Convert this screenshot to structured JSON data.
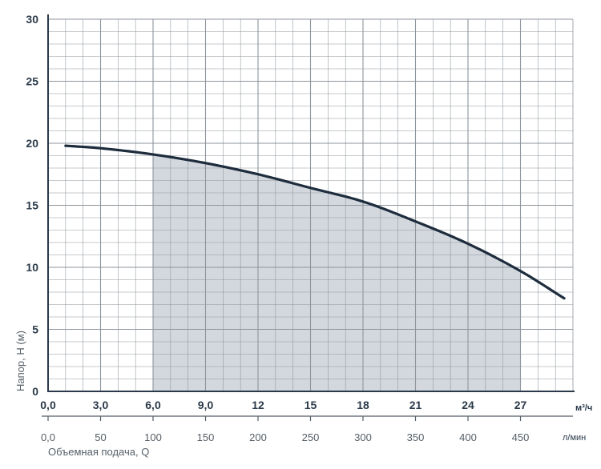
{
  "chart_data": {
    "type": "area",
    "title": "",
    "xlabel": "Объемная подача, Q",
    "ylabel": "Напор, Н (м)",
    "x_unit_primary": "м³/ч",
    "x_unit_secondary": "л/мин",
    "xlim": [
      0,
      30
    ],
    "ylim": [
      0,
      30
    ],
    "x_ticks_primary": [
      "0,0",
      "3,0",
      "6,0",
      "9,0",
      "12",
      "15",
      "18",
      "21",
      "24",
      "27"
    ],
    "x_ticks_primary_values": [
      0,
      3,
      6,
      9,
      12,
      15,
      18,
      21,
      24,
      27
    ],
    "x_ticks_secondary": [
      "0,0",
      "50",
      "100",
      "150",
      "200",
      "250",
      "300",
      "350",
      "400",
      "450"
    ],
    "x_ticks_secondary_values": [
      0,
      50,
      100,
      150,
      200,
      250,
      300,
      350,
      400,
      450
    ],
    "y_ticks": [
      "0",
      "5",
      "10",
      "15",
      "20",
      "25",
      "30"
    ],
    "y_ticks_values": [
      0,
      5,
      10,
      15,
      20,
      25,
      30
    ],
    "grid": true,
    "operating_range": [
      6,
      27
    ],
    "series": [
      {
        "x": [
          1,
          3,
          6,
          9,
          12,
          15,
          18,
          21,
          24,
          27,
          29.5
        ],
        "y": [
          19.8,
          19.6,
          19.1,
          18.4,
          17.5,
          16.4,
          15.3,
          13.7,
          11.9,
          9.7,
          7.5
        ]
      }
    ],
    "colors": {
      "curve": "#1e2d3d",
      "fill": "#d3d8de",
      "grid": "#8e959c",
      "axis": "#2b3a4a"
    }
  }
}
